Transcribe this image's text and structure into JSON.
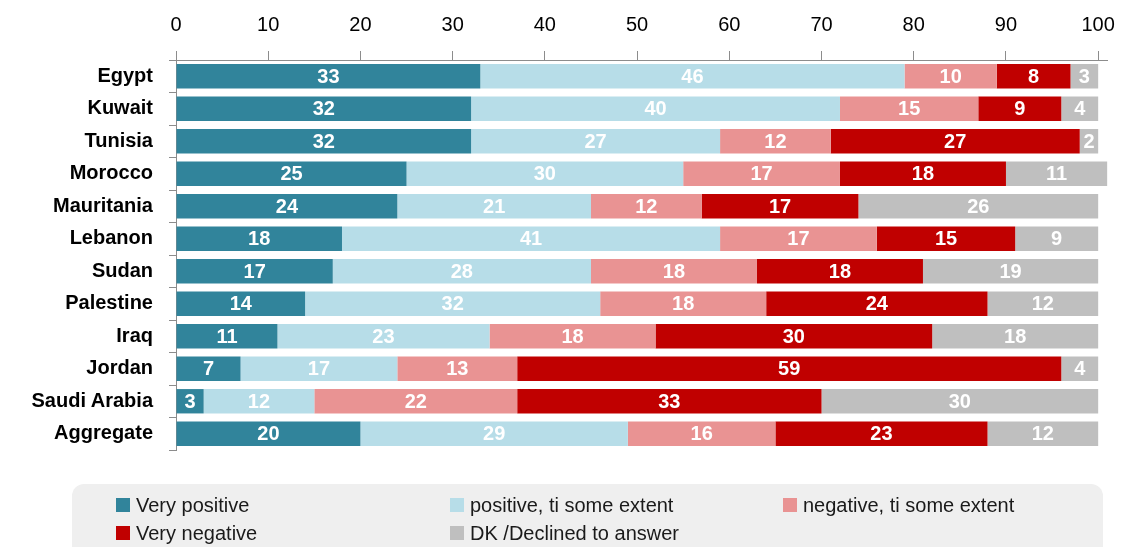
{
  "chart_data": {
    "type": "bar",
    "orientation": "horizontal",
    "stacked": true,
    "categories": [
      "Egypt",
      "Kuwait",
      "Tunisia",
      "Morocco",
      "Mauritania",
      "Lebanon",
      "Sudan",
      "Palestine",
      "Iraq",
      "Jordan",
      "Saudi Arabia",
      "Aggregate"
    ],
    "series": [
      {
        "name": "Very positive",
        "color": "#31849b",
        "values": [
          33,
          32,
          32,
          25,
          24,
          18,
          17,
          14,
          11,
          7,
          3,
          20
        ]
      },
      {
        "name": "positive, ti some extent",
        "color": "#b7dde8",
        "values": [
          46,
          40,
          27,
          30,
          21,
          41,
          28,
          32,
          23,
          17,
          12,
          29
        ]
      },
      {
        "name": "negative, ti some extent",
        "color": "#e99393",
        "values": [
          10,
          15,
          12,
          17,
          12,
          17,
          18,
          18,
          18,
          13,
          22,
          16
        ]
      },
      {
        "name": "Very negative",
        "color": "#c00000",
        "values": [
          8,
          9,
          27,
          18,
          17,
          15,
          18,
          24,
          30,
          59,
          33,
          23
        ]
      },
      {
        "name": "DK /Declined to answer",
        "color": "#bfbfbf",
        "values": [
          3,
          4,
          2,
          11,
          26,
          9,
          19,
          12,
          18,
          4,
          30,
          12
        ]
      }
    ],
    "xlim": [
      0,
      101
    ],
    "xticks": [
      0,
      10,
      20,
      30,
      40,
      50,
      60,
      70,
      80,
      90,
      100
    ],
    "data_labels": true,
    "legend": "bottom",
    "grid": false
  }
}
